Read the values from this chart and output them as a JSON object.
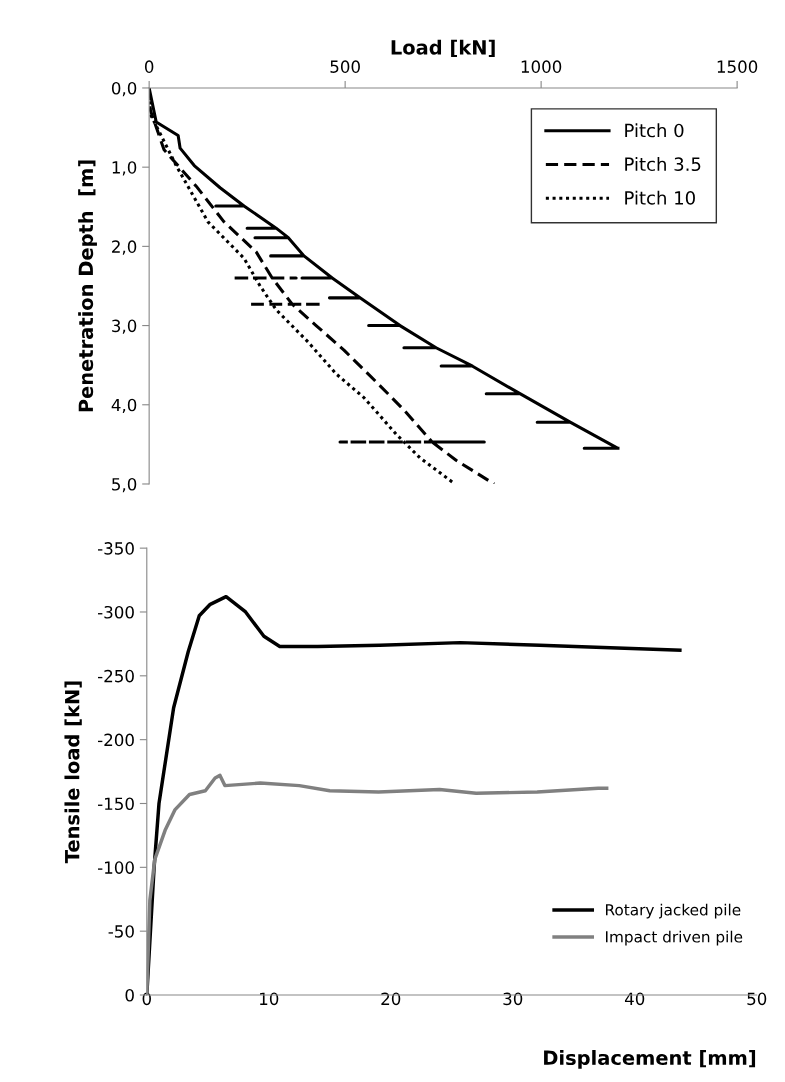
{
  "chart_data": [
    {
      "type": "line",
      "xlabel": "Load [kN]",
      "ylabel": "Penetration Depth  [m]",
      "xlim": [
        0,
        1500
      ],
      "xticks": [
        0,
        500,
        1000,
        1500
      ],
      "ylim": [
        5,
        0
      ],
      "yticks": [
        {
          "value": 0,
          "label": "0,0"
        },
        {
          "value": 1,
          "label": "1,0"
        },
        {
          "value": 2,
          "label": "2,0"
        },
        {
          "value": 3,
          "label": "3,0"
        },
        {
          "value": 4,
          "label": "4,0"
        },
        {
          "value": 5,
          "label": "5,0"
        }
      ],
      "legend": "top right",
      "grid": false,
      "marker": "none",
      "series": [
        {
          "name": "Pitch 0",
          "color": "#000000",
          "line_style": "solid",
          "x": [
            0,
            18,
            74,
            79,
            115,
            181,
            242,
            170,
            242,
            324,
            250,
            324,
            355,
            270,
            355,
            395,
            310,
            395,
            467,
            390,
            467,
            538,
            460,
            538,
            640,
            560,
            640,
            732,
            650,
            732,
            824,
            745,
            824,
            946,
            860,
            946,
            1074,
            990,
            1074,
            1196,
            1110,
            1196
          ],
          "values": [
            0,
            0.43,
            0.6,
            0.76,
            0.98,
            1.26,
            1.49,
            1.49,
            1.49,
            1.77,
            1.77,
            1.77,
            1.89,
            1.89,
            1.89,
            2.12,
            2.12,
            2.12,
            2.4,
            2.4,
            2.4,
            2.65,
            2.65,
            2.65,
            3.0,
            3.0,
            3.0,
            3.28,
            3.28,
            3.28,
            3.51,
            3.51,
            3.51,
            3.86,
            3.86,
            3.86,
            4.22,
            4.22,
            4.22,
            4.55,
            4.55,
            4.55
          ]
        },
        {
          "name": "Pitch 3.5",
          "color": "#000000",
          "line_style": "dashed",
          "x": [
            0,
            3,
            38,
            120,
            191,
            273,
            314,
            212,
            375,
            314,
            365,
            253,
            441,
            365,
            426,
            497,
            579,
            651,
            722,
            487,
            855,
            722,
            783,
            880
          ],
          "values": [
            0,
            0.28,
            0.78,
            1.24,
            1.69,
            2.07,
            2.4,
            2.4,
            2.4,
            2.4,
            2.73,
            2.73,
            2.73,
            2.73,
            3.0,
            3.31,
            3.71,
            4.07,
            4.47,
            4.47,
            4.47,
            4.47,
            4.7,
            5.0
          ]
        },
        {
          "name": "Pitch 10",
          "color": "#000000",
          "line_style": "dotted",
          "x": [
            0,
            3,
            69,
            150,
            242,
            283,
            324,
            406,
            477,
            548,
            630,
            691,
            780
          ],
          "values": [
            0,
            0.33,
            0.98,
            1.69,
            2.15,
            2.5,
            2.8,
            3.21,
            3.61,
            3.91,
            4.37,
            4.67,
            5.0
          ]
        }
      ]
    },
    {
      "type": "line",
      "xlabel": "Displacement [mm]",
      "ylabel": "Tensile load [kN]",
      "xlim": [
        0,
        50
      ],
      "xticks": [
        0,
        10,
        20,
        30,
        40,
        50
      ],
      "ylim": [
        0,
        -350
      ],
      "yticks": [
        0,
        -50,
        -100,
        -150,
        -200,
        -250,
        -300,
        -350
      ],
      "legend": "bottom right",
      "grid": false,
      "marker": "none",
      "series": [
        {
          "name": "Rotary jacked pile",
          "color": "#000000",
          "line_style": "solid",
          "x": [
            0,
            0.3,
            0.6,
            1.0,
            1.4,
            2.2,
            3.4,
            4.3,
            5.2,
            6.5,
            8.1,
            9.6,
            10.9,
            14,
            19.1,
            25.7,
            32.2,
            38,
            43.7
          ],
          "values": [
            0,
            -50,
            -100,
            -150,
            -175,
            -225,
            -269,
            -297,
            -306,
            -312,
            -300,
            -281,
            -273,
            -273,
            -274,
            -276,
            -274,
            -272,
            -270
          ]
        },
        {
          "name": "Impact driven pile",
          "color": "#808080",
          "line_style": "solid",
          "x": [
            0,
            0.25,
            0.65,
            1.5,
            2.3,
            3.5,
            4.8,
            5.6,
            6.0,
            6.4,
            9.3,
            12.5,
            15,
            19,
            24,
            27,
            32,
            37,
            37.7
          ],
          "values": [
            0,
            -74,
            -106,
            -129,
            -145,
            -157,
            -160,
            -170,
            -172,
            -164,
            -166,
            -164,
            -160,
            -159,
            -161,
            -158,
            -159,
            -162,
            -162
          ]
        }
      ]
    }
  ]
}
